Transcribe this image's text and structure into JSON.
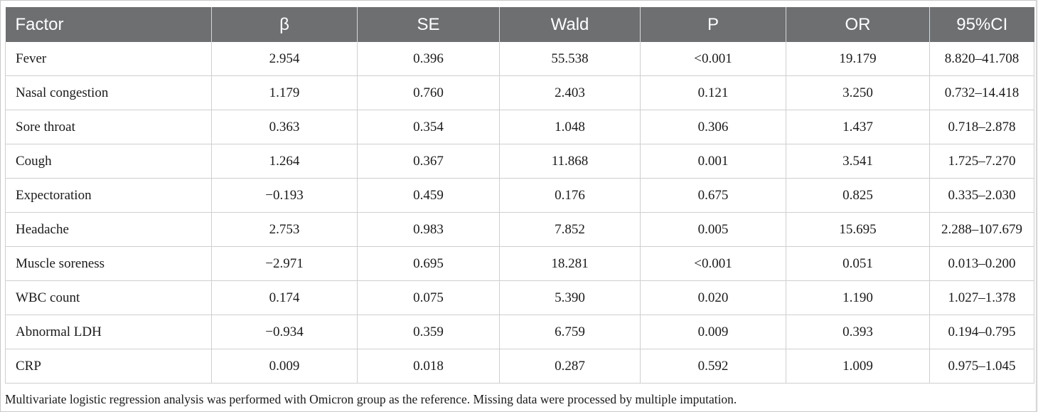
{
  "table": {
    "headers": [
      "Factor",
      "β",
      "SE",
      "Wald",
      "P",
      "OR",
      "95%CI"
    ],
    "rows": [
      [
        "Fever",
        "2.954",
        "0.396",
        "55.538",
        "<0.001",
        "19.179",
        "8.820–41.708"
      ],
      [
        "Nasal congestion",
        "1.179",
        "0.760",
        "2.403",
        "0.121",
        "3.250",
        "0.732–14.418"
      ],
      [
        "Sore throat",
        "0.363",
        "0.354",
        "1.048",
        "0.306",
        "1.437",
        "0.718–2.878"
      ],
      [
        "Cough",
        "1.264",
        "0.367",
        "11.868",
        "0.001",
        "3.541",
        "1.725–7.270"
      ],
      [
        "Expectoration",
        "−0.193",
        "0.459",
        "0.176",
        "0.675",
        "0.825",
        "0.335–2.030"
      ],
      [
        "Headache",
        "2.753",
        "0.983",
        "7.852",
        "0.005",
        "15.695",
        "2.288–107.679"
      ],
      [
        "Muscle soreness",
        "−2.971",
        "0.695",
        "18.281",
        "<0.001",
        "0.051",
        "0.013–0.200"
      ],
      [
        "WBC count",
        "0.174",
        "0.075",
        "5.390",
        "0.020",
        "1.190",
        "1.027–1.378"
      ],
      [
        "Abnormal LDH",
        "−0.934",
        "0.359",
        "6.759",
        "0.009",
        "0.393",
        "0.194–0.795"
      ],
      [
        "CRP",
        "0.009",
        "0.018",
        "0.287",
        "0.592",
        "1.009",
        "0.975–1.045"
      ]
    ]
  },
  "footnote": "Multivariate logistic regression analysis was performed with Omicron group as the reference. Missing data were processed by multiple imputation.",
  "colors": {
    "header_bg": "#6d6f71",
    "header_text": "#ffffff",
    "grid": "#cfcfcf"
  }
}
